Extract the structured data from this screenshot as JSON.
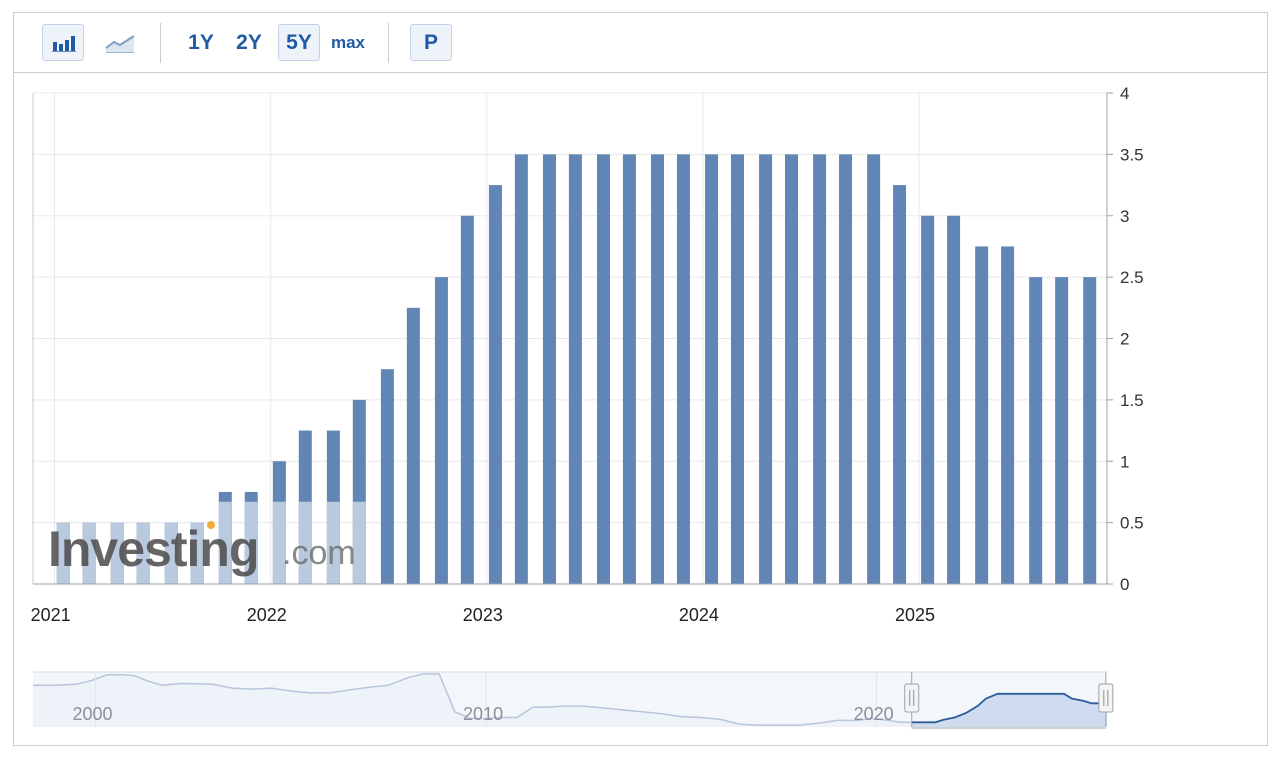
{
  "toolbar": {
    "bar_chart_icon": "bar-chart-icon",
    "line_chart_icon": "line-chart-icon",
    "range_1y": "1Y",
    "range_2y": "2Y",
    "range_5y": "5Y",
    "range_max": "max",
    "p_button": "P",
    "active_range": "5Y"
  },
  "watermark": {
    "brand": "Investing",
    "suffix": ".com"
  },
  "colors": {
    "bar": "#6186b5",
    "bar_faded": "#b9c9de",
    "grid": "#e6e8ec",
    "navigator_line": "#b7c6dc",
    "navigator_fill": "#f3f7fc",
    "navigator_selected_fill": "#cfdcef",
    "navigator_selected_line": "#2c5c9c"
  },
  "chart_data": {
    "type": "bar",
    "x_ticks": [
      "2021",
      "2022",
      "2023",
      "2024",
      "2025"
    ],
    "x_range": [
      2020.9,
      2025.87
    ],
    "dates": [
      2021.04,
      2021.16,
      2021.29,
      2021.41,
      2021.54,
      2021.66,
      2021.79,
      2021.91,
      2022.04,
      2022.16,
      2022.29,
      2022.41,
      2022.54,
      2022.66,
      2022.79,
      2022.91,
      2023.04,
      2023.16,
      2023.29,
      2023.41,
      2023.54,
      2023.66,
      2023.79,
      2023.91,
      2024.04,
      2024.16,
      2024.29,
      2024.41,
      2024.54,
      2024.66,
      2024.79,
      2024.91,
      2025.04,
      2025.16,
      2025.29,
      2025.41,
      2025.54,
      2025.66,
      2025.79
    ],
    "values": [
      0.5,
      0.5,
      0.5,
      0.5,
      0.5,
      0.5,
      0.75,
      0.75,
      1.0,
      1.25,
      1.25,
      1.5,
      1.75,
      2.25,
      2.5,
      3.0,
      3.25,
      3.5,
      3.5,
      3.5,
      3.5,
      3.5,
      3.5,
      3.5,
      3.5,
      3.5,
      3.5,
      3.5,
      3.5,
      3.5,
      3.5,
      3.25,
      3.0,
      3.0,
      2.75,
      2.75,
      2.5,
      2.5,
      2.5
    ],
    "y_ticks": [
      "0",
      "0.5",
      "1",
      "1.5",
      "2",
      "2.5",
      "3",
      "3.5",
      "4"
    ],
    "ylim": [
      0,
      4
    ],
    "y_axis_side": "right",
    "grid": true,
    "navigator": {
      "x_ticks": [
        "2000",
        "2010",
        "2020"
      ],
      "x_range": [
        1998.4,
        2025.9
      ],
      "selected_range": [
        2020.9,
        2025.87
      ],
      "series": [
        [
          1998.4,
          4.4
        ],
        [
          1999.0,
          4.4
        ],
        [
          1999.5,
          4.5
        ],
        [
          1999.9,
          4.9
        ],
        [
          2000.3,
          5.5
        ],
        [
          2000.7,
          5.5
        ],
        [
          2001.0,
          5.4
        ],
        [
          2001.3,
          4.9
        ],
        [
          2001.7,
          4.4
        ],
        [
          2002.2,
          4.6
        ],
        [
          2003.0,
          4.5
        ],
        [
          2003.5,
          4.1
        ],
        [
          2004.0,
          4.0
        ],
        [
          2004.5,
          4.1
        ],
        [
          2005.0,
          3.8
        ],
        [
          2005.5,
          3.6
        ],
        [
          2006.0,
          3.6
        ],
        [
          2006.5,
          3.9
        ],
        [
          2007.0,
          4.2
        ],
        [
          2007.5,
          4.4
        ],
        [
          2008.0,
          5.2
        ],
        [
          2008.4,
          5.6
        ],
        [
          2008.8,
          5.6
        ],
        [
          2009.2,
          1.6
        ],
        [
          2009.6,
          0.9
        ],
        [
          2010.0,
          0.9
        ],
        [
          2010.4,
          1.0
        ],
        [
          2010.8,
          1.0
        ],
        [
          2011.2,
          2.1
        ],
        [
          2011.6,
          2.1
        ],
        [
          2012.0,
          2.2
        ],
        [
          2012.5,
          2.2
        ],
        [
          2013.0,
          2.0
        ],
        [
          2013.5,
          1.8
        ],
        [
          2014.0,
          1.6
        ],
        [
          2014.5,
          1.4
        ],
        [
          2015.0,
          1.1
        ],
        [
          2015.5,
          1.0
        ],
        [
          2016.0,
          0.8
        ],
        [
          2016.5,
          0.3
        ],
        [
          2017.0,
          0.2
        ],
        [
          2017.5,
          0.2
        ],
        [
          2018.0,
          0.2
        ],
        [
          2018.5,
          0.4
        ],
        [
          2019.0,
          0.7
        ],
        [
          2019.5,
          0.7
        ],
        [
          2019.9,
          0.9
        ],
        [
          2020.3,
          0.7
        ],
        [
          2020.6,
          0.5
        ],
        [
          2020.9,
          0.5
        ],
        [
          2021.5,
          0.5
        ],
        [
          2021.7,
          0.75
        ],
        [
          2022.0,
          1.0
        ],
        [
          2022.3,
          1.5
        ],
        [
          2022.6,
          2.25
        ],
        [
          2022.8,
          3.0
        ],
        [
          2023.1,
          3.5
        ],
        [
          2024.8,
          3.5
        ],
        [
          2025.0,
          3.0
        ],
        [
          2025.3,
          2.75
        ],
        [
          2025.5,
          2.5
        ],
        [
          2025.9,
          2.5
        ]
      ],
      "ylim": [
        0,
        5.8
      ]
    }
  }
}
